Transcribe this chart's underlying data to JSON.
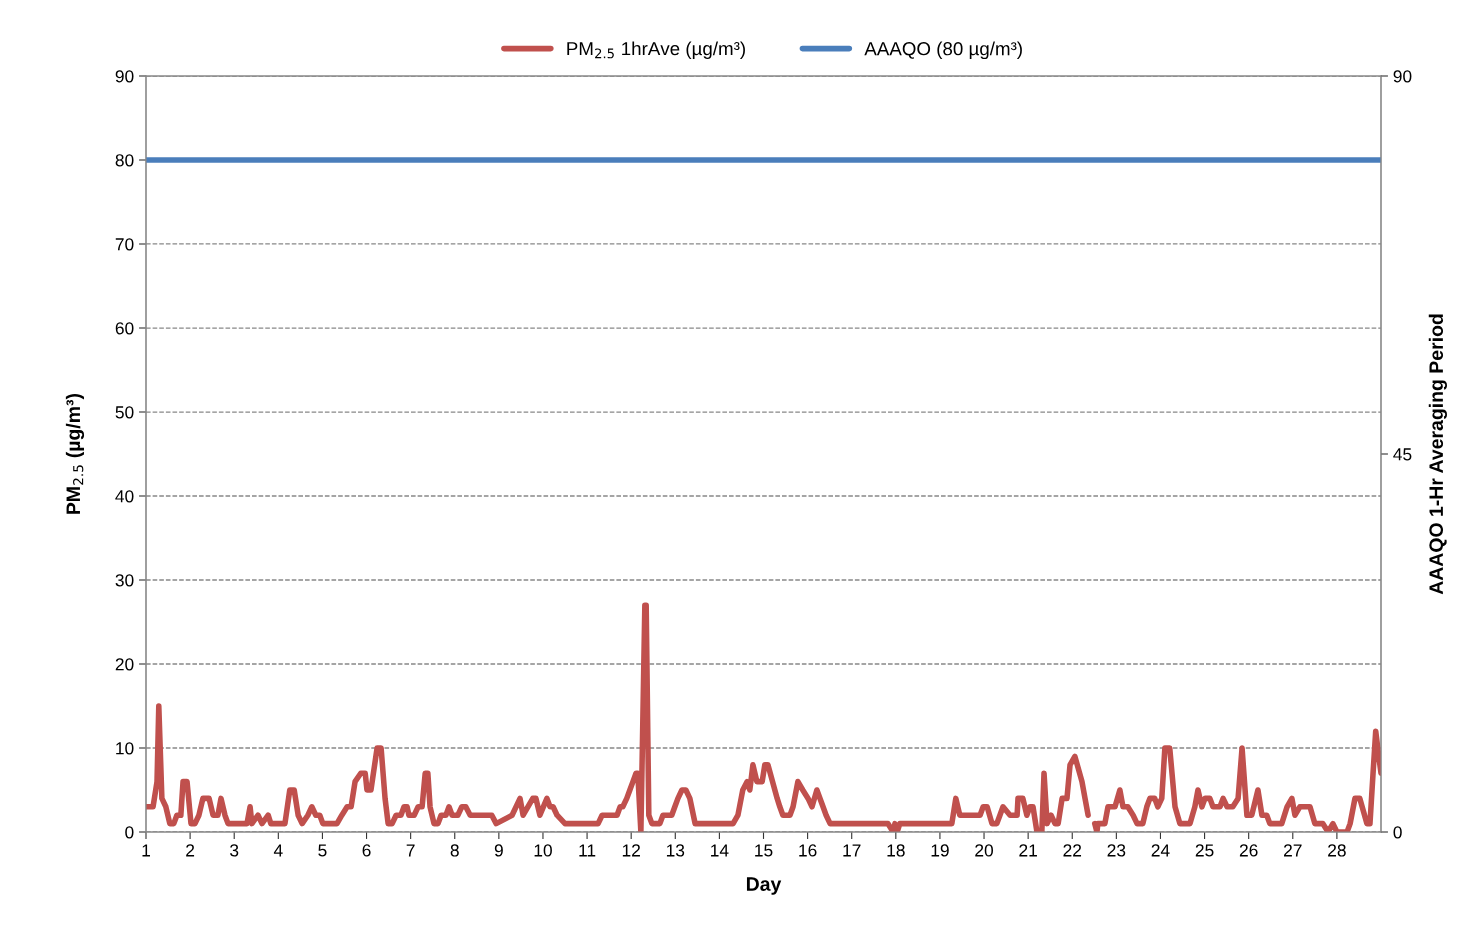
{
  "chart_data": {
    "type": "line",
    "xlabel": "Day",
    "ylabel": "PM$_{2.5}$ (µg/m³)",
    "y2label": "AAAQO 1-Hr Averaging Period",
    "xlim": [
      1,
      29
    ],
    "xticks": [
      1,
      2,
      3,
      4,
      5,
      6,
      7,
      8,
      9,
      10,
      11,
      12,
      13,
      14,
      15,
      16,
      17,
      18,
      19,
      20,
      21,
      22,
      23,
      24,
      25,
      26,
      27,
      28
    ],
    "ylim": [
      0,
      90
    ],
    "yticks": [
      0,
      10,
      20,
      30,
      40,
      50,
      60,
      70,
      80,
      90
    ],
    "y2lim": [
      0,
      90
    ],
    "y2ticks": [
      0,
      45,
      90
    ],
    "grid": "y",
    "legend": "top",
    "line_style": "solid",
    "marker": "none",
    "series": [
      {
        "name": "PM$_{2.5}$ 1hrAve (µg/m³)",
        "color": "#c0504d",
        "x": [
          1.0,
          1.16,
          1.25,
          1.29,
          1.36,
          1.45,
          1.54,
          1.63,
          1.7,
          1.79,
          1.84,
          1.93,
          2.02,
          2.11,
          2.2,
          2.29,
          2.43,
          2.52,
          2.63,
          2.7,
          2.79,
          2.86,
          3.29,
          3.36,
          3.4,
          3.54,
          3.63,
          3.77,
          3.83,
          4.15,
          4.26,
          4.36,
          4.45,
          4.54,
          4.67,
          4.76,
          4.85,
          4.94,
          5.01,
          5.33,
          5.44,
          5.56,
          5.65,
          5.74,
          5.87,
          5.97,
          6.01,
          6.1,
          6.24,
          6.33,
          6.42,
          6.49,
          6.58,
          6.67,
          6.78,
          6.85,
          6.92,
          6.96,
          7.08,
          7.17,
          7.26,
          7.33,
          7.39,
          7.44,
          7.53,
          7.62,
          7.69,
          7.8,
          7.87,
          7.94,
          8.07,
          8.16,
          8.25,
          8.35,
          8.53,
          8.84,
          8.94,
          9.3,
          9.48,
          9.55,
          9.77,
          9.84,
          9.93,
          10.09,
          10.16,
          10.23,
          10.32,
          10.5,
          11.25,
          11.34,
          11.68,
          11.75,
          11.81,
          11.9,
          11.97,
          12.04,
          12.11,
          12.15,
          12.22,
          12.31,
          12.34,
          12.4,
          12.47,
          12.65,
          12.72,
          12.92,
          12.99,
          13.06,
          13.15,
          13.24,
          13.33,
          13.45,
          14.31,
          14.42,
          14.53,
          14.63,
          14.69,
          14.76,
          14.85,
          14.97,
          15.03,
          15.1,
          15.31,
          15.37,
          15.44,
          15.6,
          15.67,
          15.78,
          15.89,
          16.01,
          16.1,
          16.21,
          16.35,
          16.42,
          16.51,
          17.82,
          17.94,
          17.98,
          18.03,
          18.09,
          19.27,
          19.36,
          19.45,
          19.91,
          19.98,
          20.07,
          20.18,
          20.29,
          20.36,
          20.43,
          20.59,
          20.75,
          20.77,
          20.88,
          20.97,
          21.04,
          21.11,
          21.2,
          21.31,
          21.36,
          21.43,
          21.52,
          21.61,
          21.68,
          21.77,
          21.88,
          21.95,
          22.06,
          22.22,
          22.29,
          22.36,
          22.45,
          22.51,
          22.56,
          22.58,
          22.74,
          22.81,
          22.97,
          23.08,
          23.15,
          23.26,
          23.38,
          23.47,
          23.6,
          23.69,
          23.76,
          23.87,
          23.94,
          24.03,
          24.1,
          24.21,
          24.33,
          24.44,
          24.67,
          24.78,
          24.85,
          24.94,
          25.01,
          25.12,
          25.19,
          25.35,
          25.42,
          25.51,
          25.64,
          25.76,
          25.85,
          25.96,
          26.07,
          26.21,
          26.3,
          26.41,
          26.48,
          26.75,
          26.87,
          26.98,
          27.05,
          27.16,
          27.39,
          27.5,
          27.68,
          27.8,
          27.91,
          28.0,
          28.23,
          28.3,
          28.41,
          28.52,
          28.68,
          28.75,
          28.82,
          28.88,
          28.95,
          29.0
        ],
        "values": [
          3,
          3,
          6,
          15,
          4,
          3,
          1,
          1,
          2,
          2,
          6,
          6,
          1,
          1,
          2,
          4,
          4,
          2,
          2,
          4,
          2,
          1,
          1,
          3,
          1,
          2,
          1,
          2,
          1,
          1,
          5,
          5,
          2,
          1,
          2,
          3,
          2,
          2,
          1,
          1,
          2,
          3,
          3,
          6,
          7,
          7,
          5,
          5,
          10,
          10,
          4,
          1,
          1,
          2,
          2,
          3,
          3,
          2,
          2,
          3,
          3,
          7,
          7,
          3,
          1,
          1,
          2,
          2,
          3,
          2,
          2,
          3,
          3,
          2,
          2,
          2,
          1,
          2,
          4,
          2,
          4,
          4,
          2,
          4,
          3,
          3,
          2,
          1,
          1,
          2,
          2,
          3,
          3,
          4,
          5,
          6,
          7,
          7,
          0,
          27,
          27,
          2,
          1,
          1,
          2,
          2,
          3,
          4,
          5,
          5,
          4,
          1,
          1,
          2,
          5,
          6,
          5,
          8,
          6,
          6,
          8,
          8,
          4,
          3,
          2,
          2,
          3,
          6,
          5,
          4,
          3,
          5,
          3,
          2,
          1,
          1,
          0,
          1,
          0,
          1,
          1,
          4,
          2,
          2,
          3,
          3,
          1,
          1,
          2,
          3,
          2,
          2,
          4,
          4,
          2,
          3,
          3,
          0,
          0,
          7,
          1,
          2,
          1,
          1,
          4,
          4,
          8,
          9,
          6,
          4,
          2,
          null,
          1,
          0,
          1,
          1,
          3,
          3,
          5,
          3,
          3,
          2,
          1,
          1,
          3,
          4,
          4,
          3,
          4,
          10,
          10,
          3,
          1,
          1,
          3,
          5,
          3,
          4,
          4,
          3,
          3,
          4,
          3,
          3,
          4,
          10,
          2,
          2,
          5,
          2,
          2,
          1,
          1,
          3,
          4,
          2,
          3,
          3,
          1,
          1,
          0,
          1,
          0,
          0,
          1,
          4,
          4,
          1,
          1,
          7,
          12,
          9,
          7
        ]
      },
      {
        "name": "AAAQO (80 µg/m³)",
        "color": "#4a7ebb",
        "x": [
          1,
          29
        ],
        "values": [
          80,
          80
        ]
      }
    ]
  }
}
